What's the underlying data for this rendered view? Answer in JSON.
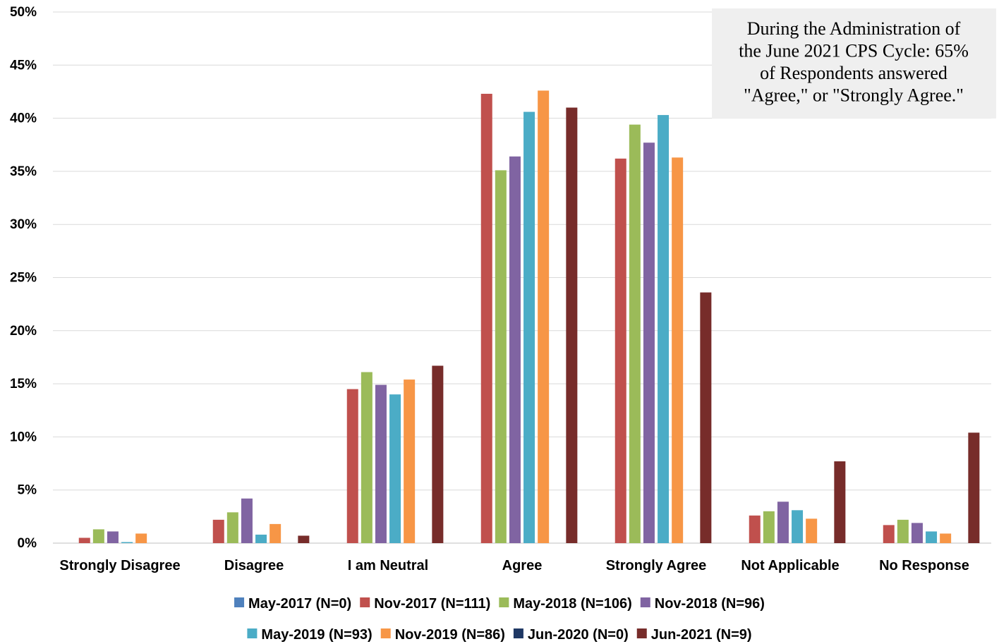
{
  "chart_data": {
    "type": "bar",
    "categories": [
      "Strongly Disagree",
      "Disagree",
      "I am Neutral",
      "Agree",
      "Strongly Agree",
      "Not Applicable",
      "No Response"
    ],
    "y_ticks": [
      "0%",
      "5%",
      "10%",
      "15%",
      "20%",
      "25%",
      "30%",
      "35%",
      "40%",
      "45%",
      "50%"
    ],
    "ylim": [
      0,
      50
    ],
    "grid": true,
    "legend_position": "bottom",
    "series": [
      {
        "name": "May-2017 (N=0)",
        "color": "#4F81BD",
        "values": [
          0,
          0,
          0,
          0,
          0,
          0,
          0
        ]
      },
      {
        "name": "Nov-2017 (N=111)",
        "color": "#C0504D",
        "values": [
          0.5,
          2.2,
          14.5,
          42.3,
          36.2,
          2.6,
          1.7
        ]
      },
      {
        "name": "May-2018 (N=106)",
        "color": "#9BBB59",
        "values": [
          1.3,
          2.9,
          16.1,
          35.1,
          39.4,
          3.0,
          2.2
        ]
      },
      {
        "name": "Nov-2018 (N=96)",
        "color": "#8064A2",
        "values": [
          1.1,
          4.2,
          14.9,
          36.4,
          37.7,
          3.9,
          1.9
        ]
      },
      {
        "name": "May-2019 (N=93)",
        "color": "#4BACC6",
        "values": [
          0.1,
          0.8,
          14.0,
          40.6,
          40.3,
          3.1,
          1.1
        ]
      },
      {
        "name": "Nov-2019 (N=86)",
        "color": "#F79646",
        "values": [
          0.9,
          1.8,
          15.4,
          42.6,
          36.3,
          2.3,
          0.9
        ]
      },
      {
        "name": "Jun-2020 (N=0)",
        "color": "#1F3864",
        "values": [
          0,
          0,
          0,
          0,
          0,
          0,
          0
        ]
      },
      {
        "name": "Jun-2021 (N=9)",
        "color": "#772C2A",
        "values": [
          0,
          0.7,
          16.7,
          41.0,
          23.6,
          7.7,
          10.4
        ]
      }
    ],
    "annotation": {
      "lines": [
        "During the Administration of",
        "the June 2021 CPS Cycle: 65%",
        "of Respondents answered",
        "\"Agree,\" or \"Strongly Agree.\""
      ],
      "background": "#EFEFEF"
    }
  }
}
